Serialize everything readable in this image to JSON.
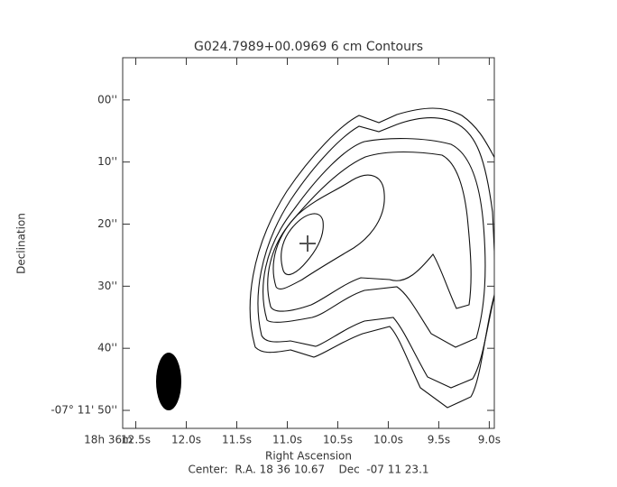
{
  "chart_data": {
    "type": "contour",
    "title": "G024.7989+00.0969 6 cm Contours",
    "x_label": "Right Ascension",
    "y_label": "Declination",
    "x_prefix": "18h 36m",
    "footer": "Center:  R.A. 18 36 10.67    Dec  -07 11 23.1",
    "xlim": [
      12.63,
      8.95
    ],
    "xticks": [
      {
        "value": 12.5,
        "label": "12.5s"
      },
      {
        "value": 12.0,
        "label": "12.0s"
      },
      {
        "value": 11.5,
        "label": "11.5s"
      },
      {
        "value": 11.0,
        "label": "11.0s"
      },
      {
        "value": 10.5,
        "label": "10.5s"
      },
      {
        "value": 10.0,
        "label": "10.0s"
      },
      {
        "value": 9.5,
        "label": "9.5s"
      },
      {
        "value": 9.0,
        "label": "9.0s"
      }
    ],
    "ylim": [
      52.9,
      -6.8
    ],
    "yticks": [
      {
        "value": 0,
        "label": "00''"
      },
      {
        "value": 10,
        "label": "10''"
      },
      {
        "value": 20,
        "label": "20''"
      },
      {
        "value": 30,
        "label": "30''"
      },
      {
        "value": 40,
        "label": "40''"
      },
      {
        "value": 50,
        "label": "-07° 11' 50''"
      }
    ],
    "color": "#000000"
  }
}
